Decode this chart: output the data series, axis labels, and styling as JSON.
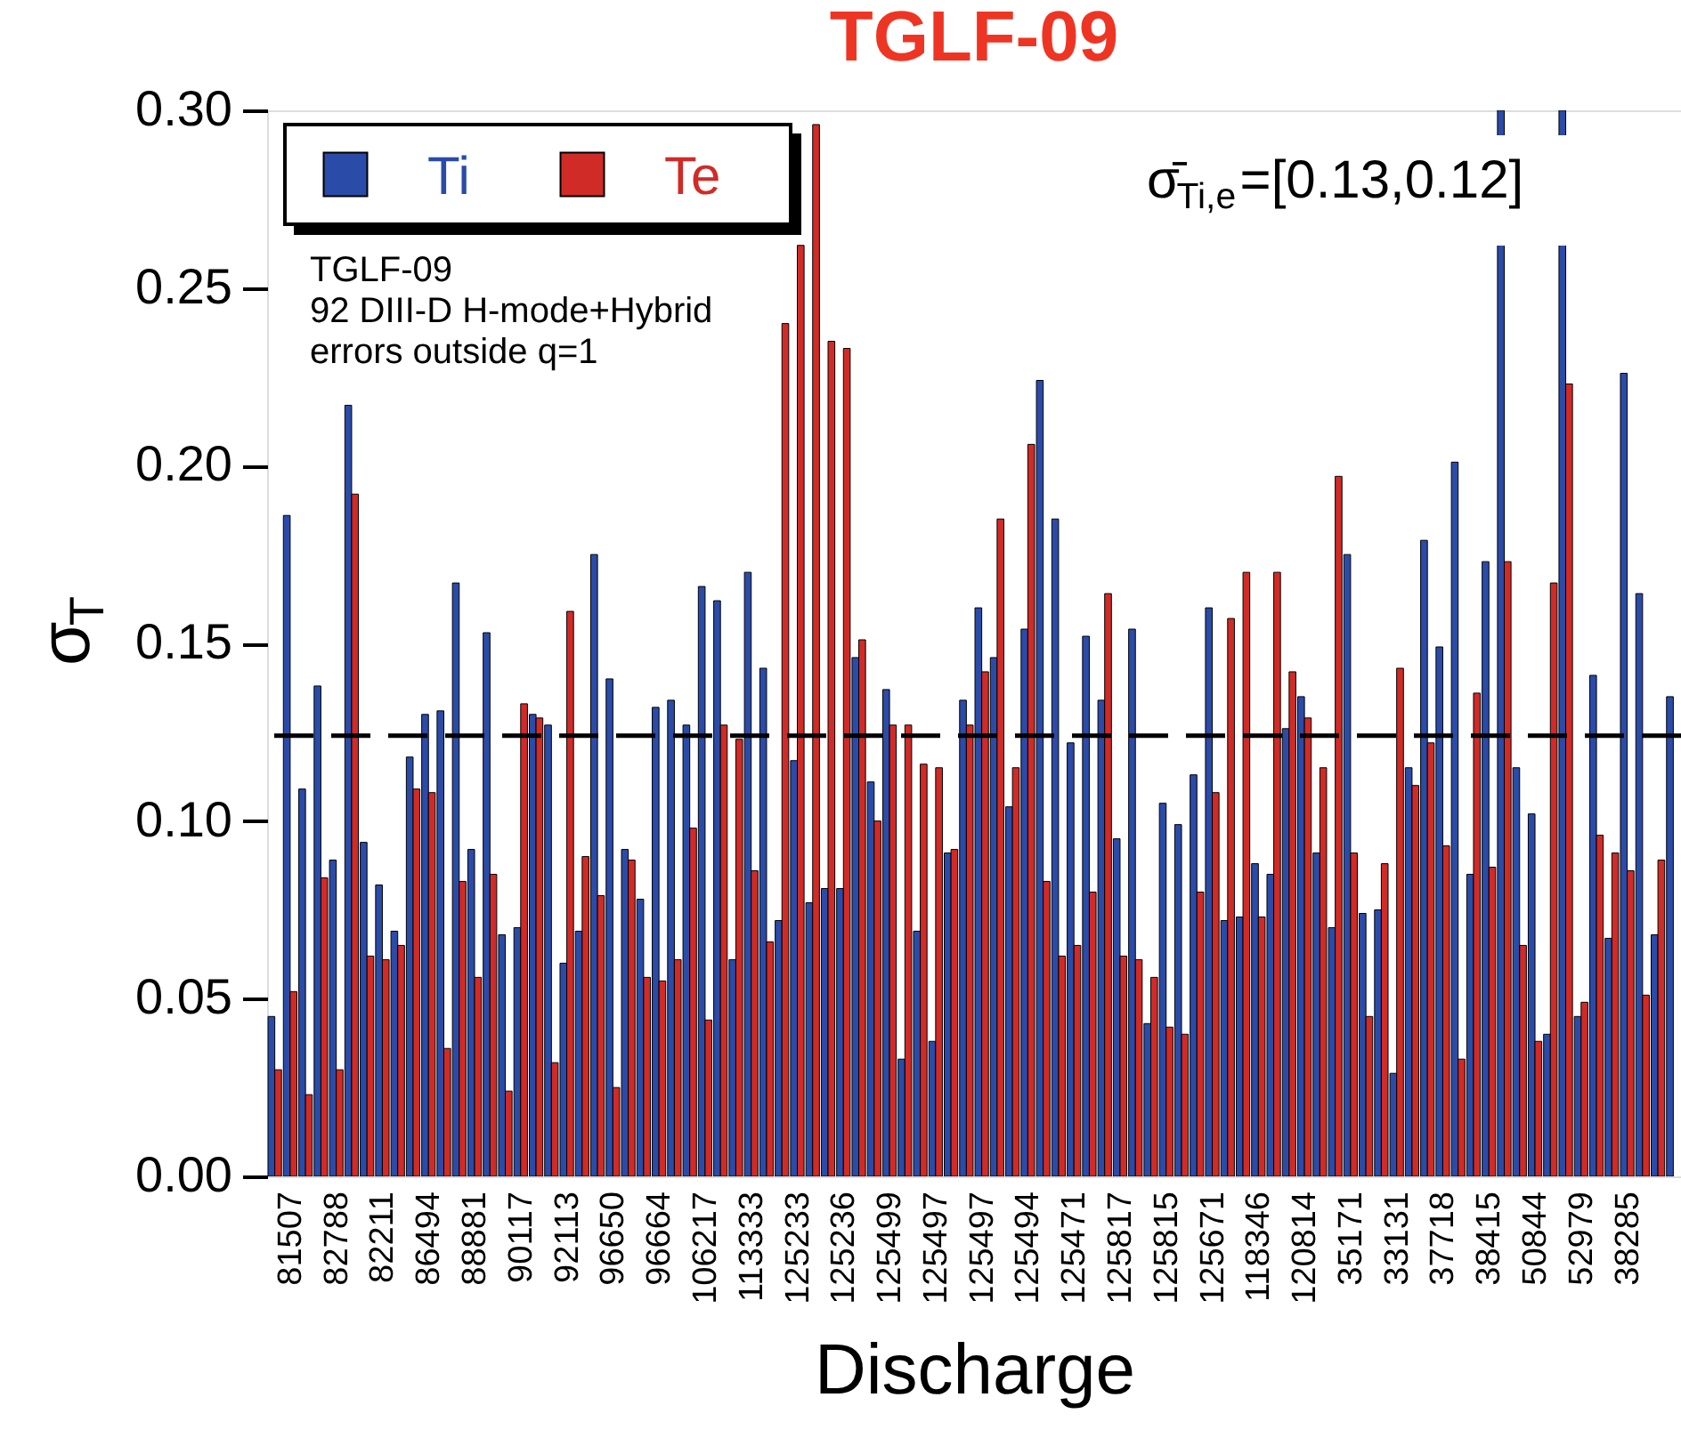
{
  "chart_data": {
    "type": "bar",
    "title": "TGLF-09",
    "xlabel": "Discharge",
    "ylabel": "σ$_{T}$",
    "categories": [
      null,
      "81507",
      null,
      null,
      "82788",
      null,
      null,
      "82211",
      null,
      null,
      "86494",
      null,
      null,
      "88881",
      null,
      null,
      "90117",
      null,
      null,
      "92113",
      null,
      null,
      "96650",
      null,
      null,
      "96664",
      null,
      null,
      "106217",
      null,
      null,
      "113333",
      null,
      null,
      "125233",
      null,
      null,
      "125236",
      null,
      null,
      "125499",
      null,
      null,
      "125497",
      null,
      null,
      "125497",
      null,
      null,
      "125494",
      null,
      null,
      "125471",
      null,
      null,
      "125817",
      null,
      null,
      "125815",
      null,
      null,
      "125671",
      null,
      null,
      "118346",
      null,
      null,
      "120814",
      null,
      null,
      "35171",
      null,
      null,
      "33131",
      null,
      null,
      "37718",
      null,
      null,
      "38415",
      null,
      null,
      "50844",
      null,
      null,
      "52979",
      null,
      null,
      "38285",
      null,
      null,
      null
    ],
    "series": [
      {
        "name": "Ti",
        "color": "#2b4ba8",
        "values": [
          0.045,
          0.186,
          0.109,
          0.138,
          0.089,
          0.217,
          0.094,
          0.082,
          0.069,
          0.118,
          0.13,
          0.131,
          0.167,
          0.092,
          0.153,
          0.068,
          0.07,
          0.13,
          0.127,
          0.06,
          0.069,
          0.175,
          0.14,
          0.092,
          0.078,
          0.132,
          0.134,
          0.127,
          0.166,
          0.162,
          0.061,
          0.17,
          0.143,
          0.072,
          0.117,
          0.077,
          0.081,
          0.081,
          0.146,
          0.111,
          0.137,
          0.033,
          0.069,
          0.038,
          0.091,
          0.134,
          0.16,
          0.146,
          0.104,
          0.154,
          0.224,
          0.185,
          0.122,
          0.152,
          0.134,
          0.095,
          0.154,
          0.043,
          0.105,
          0.099,
          0.113,
          0.16,
          0.072,
          0.073,
          0.088,
          0.085,
          0.126,
          0.135,
          0.091,
          0.07,
          0.175,
          0.074,
          0.075,
          0.029,
          0.115,
          0.179,
          0.149,
          0.201,
          0.085,
          0.173,
          0.3,
          0.115,
          0.102,
          0.04,
          0.3,
          0.045,
          0.141,
          0.067,
          0.226,
          0.164,
          0.068,
          0.135
        ]
      },
      {
        "name": "Te",
        "color": "#d02b27",
        "values": [
          0.03,
          0.052,
          0.023,
          0.084,
          0.03,
          0.192,
          0.062,
          0.061,
          0.065,
          0.109,
          0.108,
          0.036,
          0.083,
          0.056,
          0.085,
          0.024,
          0.133,
          0.129,
          0.032,
          0.159,
          0.09,
          0.079,
          0.025,
          0.089,
          0.056,
          0.055,
          0.061,
          0.098,
          0.044,
          0.127,
          0.123,
          0.086,
          0.066,
          0.24,
          0.262,
          0.296,
          0.235,
          0.233,
          0.151,
          0.1,
          0.127,
          0.127,
          0.116,
          0.115,
          0.092,
          0.127,
          0.142,
          0.185,
          0.115,
          0.206,
          0.083,
          0.062,
          0.065,
          0.08,
          0.164,
          0.062,
          0.061,
          0.056,
          0.042,
          0.04,
          0.08,
          0.108,
          0.157,
          0.17,
          0.073,
          0.17,
          0.142,
          0.129,
          0.115,
          0.197,
          0.091,
          0.045,
          0.088,
          0.143,
          0.11,
          0.122,
          0.093,
          0.033,
          0.136,
          0.087,
          0.173,
          0.065,
          0.038,
          0.167,
          0.223,
          0.049,
          0.096,
          0.091,
          0.086,
          0.051,
          0.089,
          null
        ]
      }
    ],
    "ylim": [
      0,
      0.3
    ],
    "yticks": [
      {
        "value": 0,
        "label": "0.00"
      },
      {
        "value": 0.05,
        "label": "0.05"
      },
      {
        "value": 0.1,
        "label": "0.10"
      },
      {
        "value": 0.15,
        "label": "0.15"
      },
      {
        "value": 0.2,
        "label": "0.20"
      },
      {
        "value": 0.25,
        "label": "0.25"
      },
      {
        "value": 0.3,
        "label": "0.30"
      }
    ],
    "ref_lines": [
      {
        "axis": "y",
        "value": 0.124,
        "line_style": "dashed",
        "color": "#000000"
      }
    ],
    "annotations": [
      "TGLF-09",
      "92 DIII-D H-mode+Hybrid",
      "errors outside q=1",
      "σ̄$_{Ti,e}$=[0.13,0.12]"
    ],
    "legend": "top left",
    "grid": false
  }
}
